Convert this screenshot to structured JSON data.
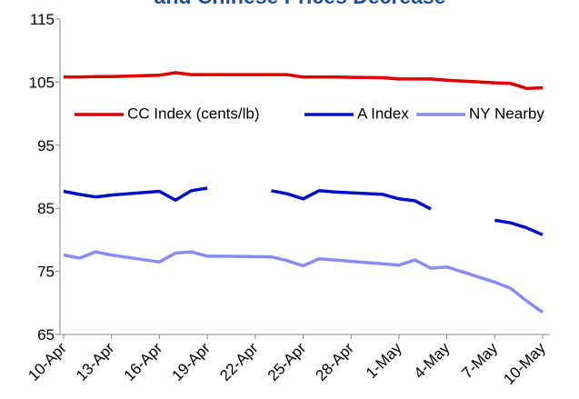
{
  "chart_data": {
    "type": "line",
    "title": "and Chinese Prices Decrease",
    "x": [
      "10-Apr",
      "11-Apr",
      "12-Apr",
      "13-Apr",
      "16-Apr",
      "17-Apr",
      "18-Apr",
      "19-Apr",
      "20-Apr",
      "23-Apr",
      "24-Apr",
      "25-Apr",
      "26-Apr",
      "27-Apr",
      "30-Apr",
      "1-May",
      "2-May",
      "3-May",
      "4-May",
      "7-May",
      "8-May",
      "9-May",
      "10-May"
    ],
    "xlim": [
      "10-Apr",
      "10-May"
    ],
    "xticks": [
      "10-Apr",
      "13-Apr",
      "16-Apr",
      "19-Apr",
      "22-Apr",
      "25-Apr",
      "28-Apr",
      "1-May",
      "4-May",
      "7-May",
      "10-May"
    ],
    "ylim": [
      65,
      115
    ],
    "yticks": [
      65,
      75,
      85,
      95,
      105,
      115
    ],
    "grid": false,
    "legend": "top",
    "series": [
      {
        "name": "CC Index (cents/lb)",
        "color": "#e00000",
        "values": [
          105.8,
          105.8,
          105.9,
          105.9,
          106.1,
          106.5,
          106.2,
          106.2,
          106.2,
          106.2,
          106.2,
          105.8,
          105.8,
          105.8,
          105.7,
          105.5,
          105.5,
          105.5,
          105.3,
          104.9,
          104.8,
          104.0,
          104.1
        ]
      },
      {
        "name": "A Index",
        "color": "#0010c8",
        "values": [
          87.7,
          87.2,
          86.8,
          87.1,
          87.7,
          86.3,
          87.8,
          88.2,
          null,
          87.8,
          87.3,
          86.5,
          87.8,
          87.6,
          87.2,
          86.5,
          86.2,
          84.9,
          null,
          83.1,
          82.7,
          81.9,
          80.8
        ]
      },
      {
        "name": "NY Nearby",
        "color": "#8c8cf0",
        "values": [
          77.6,
          77.1,
          78.1,
          77.6,
          76.5,
          77.9,
          78.1,
          77.4,
          77.4,
          77.3,
          76.7,
          75.9,
          77.0,
          76.8,
          76.2,
          76.0,
          76.8,
          75.5,
          75.7,
          73.3,
          72.3,
          70.3,
          68.5
        ]
      }
    ]
  }
}
